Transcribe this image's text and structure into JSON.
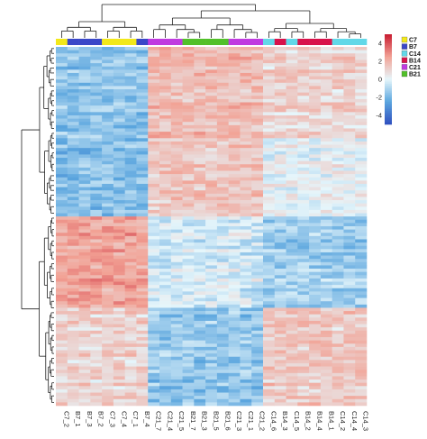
{
  "chart_data": {
    "type": "heatmap",
    "columns": [
      "C7_2",
      "B7_1",
      "B7_3",
      "B7_2",
      "C7_3",
      "C7_4",
      "C7_1",
      "B7_4",
      "C21_7",
      "C21_4",
      "C21_5",
      "B21_7",
      "B21_3",
      "B21_5",
      "B21_6",
      "C21_3",
      "C21_1",
      "C21_2",
      "C14_6",
      "B14_3",
      "C14_5",
      "B14_2",
      "B14_4",
      "B14_1",
      "C14_2",
      "C14_4",
      "C14_3"
    ],
    "column_groups": [
      "C7",
      "B7",
      "B7",
      "B7",
      "C7",
      "C7",
      "C7",
      "B7",
      "C21",
      "C21",
      "C21",
      "B21",
      "B21",
      "B21",
      "B21",
      "C21",
      "C21",
      "C21",
      "C14",
      "B14",
      "C14",
      "B14",
      "B14",
      "B14",
      "C14",
      "C14",
      "C14"
    ],
    "row_count": 110,
    "cluster_pattern": [
      {
        "rows": "top block",
        "C7_B7": -1.6,
        "C21_B21": 1.7,
        "C14_B14": 1.0
      },
      {
        "rows": "upper-middle block",
        "C7_B7": -1.7,
        "C21_B21": 1.4,
        "C14_B14": 0.1
      },
      {
        "rows": "lower-middle block",
        "C7_B7": 2.4,
        "C21_B21": -0.3,
        "C14_B14": -1.2
      },
      {
        "rows": "bottom block",
        "C7_B7": 1.0,
        "C21_B21": -1.5,
        "C14_B14": 1.3
      }
    ],
    "colorbar": {
      "ticks": [
        4,
        2,
        0,
        -2,
        -4
      ],
      "range": [
        -5,
        5
      ],
      "colors": [
        "#2f4fbf",
        "#5aa5de",
        "#e6f6fb",
        "#f2a295",
        "#c81a30"
      ]
    },
    "legend": [
      {
        "label": "C7",
        "color": "#f2e81a"
      },
      {
        "label": "B7",
        "color": "#3a47c8"
      },
      {
        "label": "C14",
        "color": "#62d8e8"
      },
      {
        "label": "B14",
        "color": "#d8124a"
      },
      {
        "label": "C21",
        "color": "#c03ae0"
      },
      {
        "label": "B21",
        "color": "#52c02a"
      }
    ],
    "legend_position": "top-right",
    "row_dendrogram": "left",
    "column_dendrogram": "top"
  }
}
